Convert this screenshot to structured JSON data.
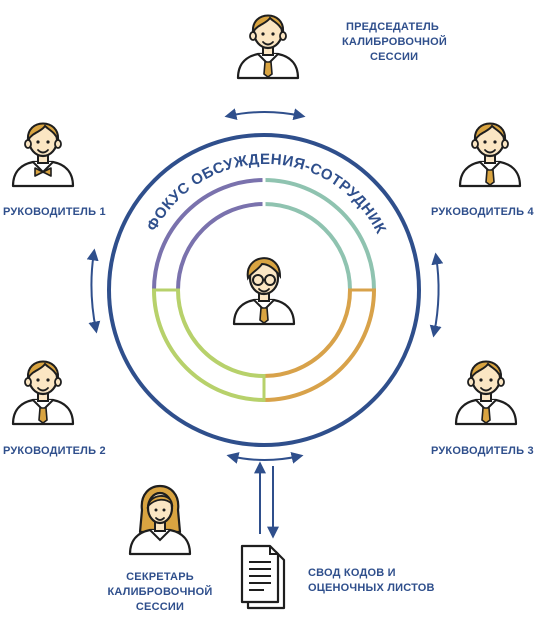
{
  "diagram": {
    "ring_title": "ФОКУС ОБСУЖДЕНИЯ-СОТРУДНИК",
    "roles": {
      "chair": [
        "ПРЕДСЕДАТЕЛЬ",
        "КАЛИБРОВОЧНОЙ",
        "СЕССИИ"
      ],
      "manager1": "РУКОВОДИТЕЛЬ 1",
      "manager2": "РУКОВОДИТЕЛЬ 2",
      "manager3": "РУКОВОДИТЕЛЬ 3",
      "manager4": "РУКОВОДИТЕЛЬ 4",
      "secretary": [
        "СЕКРЕТАРЬ",
        "КАЛИБРОВОЧНОЙ",
        "СЕССИИ"
      ],
      "documents": [
        "СВОД КОДОВ И",
        "ОЦЕНОЧНЫХ ЛИСТОВ"
      ]
    },
    "icons": {
      "chair": "person-tie-icon",
      "manager1": "person-bowtie-icon",
      "manager2": "person-tie-icon",
      "manager3": "person-tie-icon",
      "manager4": "person-tie-icon",
      "secretary": "woman-icon",
      "employee": "person-glasses-icon",
      "documents": "document-stack-icon"
    },
    "colors": {
      "text": "#2f4f8c",
      "outer_ring": "#2f4f8c",
      "arc_purple": "#7a72ad",
      "arc_teal": "#8fc3b0",
      "arc_orange": "#d8a24a",
      "arc_green": "#b7d16b",
      "skin": "#fbe6c3",
      "hair": "#d9a441",
      "outline": "#1e1e1e",
      "tie": "#d9a441"
    }
  }
}
